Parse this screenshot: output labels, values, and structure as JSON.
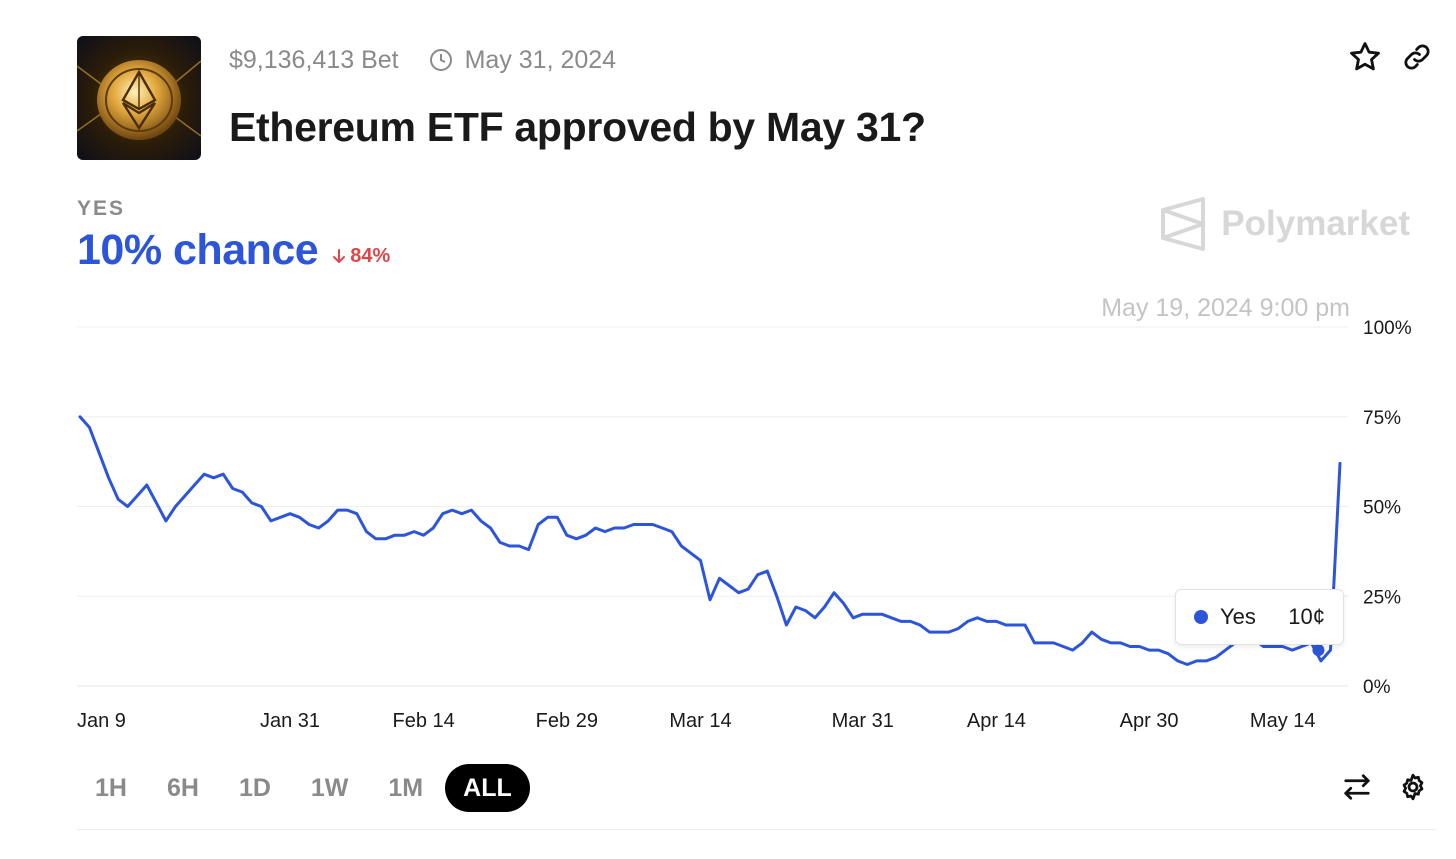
{
  "market": {
    "volume": "$9,136,413 Bet",
    "end_date": "May 31, 2024",
    "title": "Ethereum ETF approved by May 31?",
    "outcome_label": "YES",
    "chance": "10% chance",
    "change": "84%",
    "change_direction": "down"
  },
  "brand": {
    "name": "Polymarket"
  },
  "hover": {
    "date": "May 19, 2024 9:00 pm",
    "series": "Yes",
    "price": "10¢"
  },
  "icons": [
    "ethereum-coin-thumbnail",
    "clock-icon",
    "star-icon",
    "link-icon",
    "polymarket-logo-icon",
    "arrow-down-icon",
    "swap-icon",
    "gear-icon"
  ],
  "colors": {
    "accent": "#2c55d9",
    "negative": "#e0454a",
    "grid": "#efefef"
  },
  "time_ranges": [
    {
      "label": "1H",
      "active": false
    },
    {
      "label": "6H",
      "active": false
    },
    {
      "label": "1D",
      "active": false
    },
    {
      "label": "1W",
      "active": false
    },
    {
      "label": "1M",
      "active": false
    },
    {
      "label": "ALL",
      "active": true
    }
  ],
  "chart_data": {
    "type": "line",
    "x_tick_labels": [
      "Jan 9",
      "Jan 31",
      "Feb 14",
      "Feb 29",
      "Mar 14",
      "Mar 31",
      "Apr 14",
      "Apr 30",
      "May 14"
    ],
    "y_tick_labels": [
      "100%",
      "75%",
      "50%",
      "25%",
      "0%"
    ],
    "ylim": [
      0,
      100
    ],
    "y_unit": "%",
    "grid": true,
    "series": [
      {
        "name": "Yes",
        "color": "#2c55d9",
        "x": [
          "2024-01-09",
          "2024-01-10",
          "2024-01-12",
          "2024-01-13",
          "2024-01-14",
          "2024-01-15",
          "2024-01-16",
          "2024-01-17",
          "2024-01-18",
          "2024-01-19",
          "2024-01-20",
          "2024-01-21",
          "2024-01-22",
          "2024-01-23",
          "2024-01-24",
          "2024-01-25",
          "2024-01-26",
          "2024-01-27",
          "2024-01-28",
          "2024-01-29",
          "2024-01-30",
          "2024-01-31",
          "2024-02-01",
          "2024-02-02",
          "2024-02-03",
          "2024-02-04",
          "2024-02-05",
          "2024-02-06",
          "2024-02-07",
          "2024-02-08",
          "2024-02-09",
          "2024-02-10",
          "2024-02-11",
          "2024-02-12",
          "2024-02-13",
          "2024-02-14",
          "2024-02-15",
          "2024-02-16",
          "2024-02-17",
          "2024-02-18",
          "2024-02-19",
          "2024-02-20",
          "2024-02-21",
          "2024-02-22",
          "2024-02-23",
          "2024-02-24",
          "2024-02-25",
          "2024-02-26",
          "2024-02-27",
          "2024-02-28",
          "2024-02-29",
          "2024-03-01",
          "2024-03-02",
          "2024-03-03",
          "2024-03-04",
          "2024-03-05",
          "2024-03-06",
          "2024-03-07",
          "2024-03-08",
          "2024-03-09",
          "2024-03-10",
          "2024-03-11",
          "2024-03-12",
          "2024-03-13",
          "2024-03-14",
          "2024-03-15",
          "2024-03-16",
          "2024-03-17",
          "2024-03-18",
          "2024-03-19",
          "2024-03-20",
          "2024-03-21",
          "2024-03-22",
          "2024-03-23",
          "2024-03-24",
          "2024-03-25",
          "2024-03-26",
          "2024-03-27",
          "2024-03-28",
          "2024-03-29",
          "2024-03-30",
          "2024-03-31",
          "2024-04-01",
          "2024-04-02",
          "2024-04-03",
          "2024-04-04",
          "2024-04-05",
          "2024-04-06",
          "2024-04-07",
          "2024-04-08",
          "2024-04-09",
          "2024-04-10",
          "2024-04-11",
          "2024-04-12",
          "2024-04-13",
          "2024-04-14",
          "2024-04-15",
          "2024-04-16",
          "2024-04-17",
          "2024-04-18",
          "2024-04-19",
          "2024-04-20",
          "2024-04-21",
          "2024-04-22",
          "2024-04-23",
          "2024-04-24",
          "2024-04-25",
          "2024-04-26",
          "2024-04-27",
          "2024-04-28",
          "2024-04-29",
          "2024-04-30",
          "2024-05-01",
          "2024-05-02",
          "2024-05-03",
          "2024-05-04",
          "2024-05-05",
          "2024-05-06",
          "2024-05-07",
          "2024-05-08",
          "2024-05-09",
          "2024-05-10",
          "2024-05-11",
          "2024-05-12",
          "2024-05-13",
          "2024-05-14",
          "2024-05-15",
          "2024-05-16",
          "2024-05-17",
          "2024-05-18",
          "2024-05-19",
          "2024-05-20"
        ],
        "values": [
          75,
          72,
          58,
          52,
          50,
          53,
          56,
          51,
          46,
          50,
          53,
          56,
          59,
          58,
          59,
          55,
          54,
          51,
          50,
          46,
          47,
          48,
          47,
          45,
          44,
          46,
          49,
          49,
          48,
          43,
          41,
          41,
          42,
          42,
          43,
          42,
          44,
          48,
          49,
          48,
          49,
          46,
          44,
          40,
          39,
          39,
          38,
          45,
          47,
          47,
          42,
          41,
          42,
          44,
          43,
          44,
          44,
          45,
          45,
          45,
          44,
          43,
          39,
          37,
          35,
          24,
          30,
          28,
          26,
          27,
          31,
          32,
          25,
          17,
          22,
          21,
          19,
          22,
          26,
          23,
          19,
          20,
          20,
          20,
          19,
          18,
          18,
          17,
          15,
          15,
          15,
          16,
          18,
          19,
          18,
          18,
          17,
          17,
          17,
          12,
          12,
          12,
          11,
          10,
          12,
          15,
          13,
          12,
          12,
          11,
          11,
          10,
          10,
          9,
          7,
          6,
          7,
          7,
          8,
          10,
          12,
          14,
          13,
          11,
          11,
          11,
          10,
          11,
          12,
          7,
          10,
          62
        ]
      }
    ],
    "highlight_point": {
      "x": "2024-05-19",
      "y": 10
    }
  }
}
